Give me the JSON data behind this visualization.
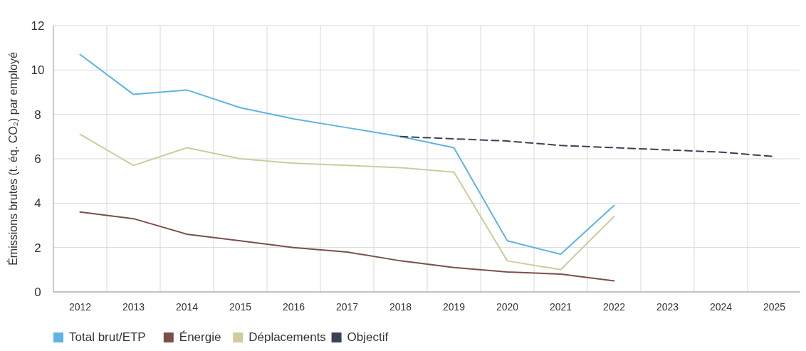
{
  "chart_data": {
    "type": "line",
    "ylabel": "Émissions brutes (t. éq. CO₂) par employé",
    "categories": [
      "2012",
      "2013",
      "2014",
      "2015",
      "2016",
      "2017",
      "2018",
      "2019",
      "2020",
      "2021",
      "2022",
      "2023",
      "2024",
      "2025"
    ],
    "series": [
      {
        "name": "Total brut/ETP",
        "color": "#5db4e5",
        "values": [
          10.7,
          8.9,
          9.1,
          8.3,
          7.8,
          7.4,
          7.0,
          6.5,
          2.3,
          1.7,
          3.9,
          null,
          null,
          null
        ]
      },
      {
        "name": "Énergie",
        "color": "#7a4f4a",
        "values": [
          3.6,
          3.3,
          2.6,
          2.3,
          2.0,
          1.8,
          1.4,
          1.1,
          0.9,
          0.8,
          0.5,
          null,
          null,
          null
        ]
      },
      {
        "name": "Déplacements",
        "color": "#cfcb9e",
        "values": [
          7.1,
          5.7,
          6.5,
          6.0,
          5.8,
          5.7,
          5.6,
          5.4,
          1.4,
          1.0,
          3.4,
          null,
          null,
          null
        ]
      },
      {
        "name": "Objectif",
        "color": "#3a4255",
        "line_style": "dashed",
        "values": [
          null,
          null,
          null,
          null,
          null,
          null,
          7.0,
          6.9,
          6.8,
          6.6,
          6.5,
          6.4,
          6.3,
          6.1
        ]
      }
    ],
    "ylim": [
      0,
      12
    ],
    "yticks": [
      0,
      2,
      4,
      6,
      8,
      10,
      12
    ],
    "grid": true,
    "legend": "bottom left",
    "marker": "none",
    "line_style": "solid"
  }
}
